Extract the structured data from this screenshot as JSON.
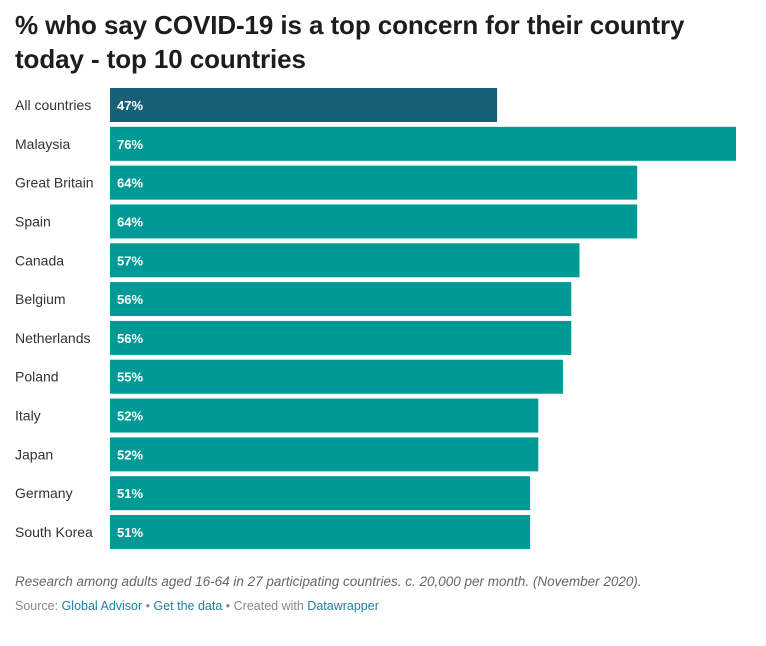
{
  "chart_data": {
    "type": "bar",
    "orientation": "horizontal",
    "title": "% who say COVID-19 is a top concern for their country today - top 10 countries",
    "categories": [
      "All countries",
      "Malaysia",
      "Great Britain",
      "Spain",
      "Canada",
      "Belgium",
      "Netherlands",
      "Poland",
      "Italy",
      "Japan",
      "Germany",
      "South Korea"
    ],
    "values": [
      47,
      76,
      64,
      64,
      57,
      56,
      56,
      55,
      52,
      52,
      51,
      51
    ],
    "value_labels": [
      "47%",
      "76%",
      "64%",
      "64%",
      "57%",
      "56%",
      "56%",
      "55%",
      "52%",
      "52%",
      "51%",
      "51%"
    ],
    "xlim": [
      0,
      76
    ],
    "highlight_index": 0,
    "colors": {
      "highlight": "#17607a",
      "bar": "#009a96"
    },
    "xlabel": "",
    "ylabel": ""
  },
  "footer": {
    "notes": "Research among adults aged 16-64 in 27 participating countries. c. 20,000 per month. (November 2020).",
    "source_prefix": "Source: ",
    "source_link": "Global Advisor",
    "separator": " • ",
    "get_data": "Get the data",
    "created_with": "Created with ",
    "tool": "Datawrapper"
  }
}
